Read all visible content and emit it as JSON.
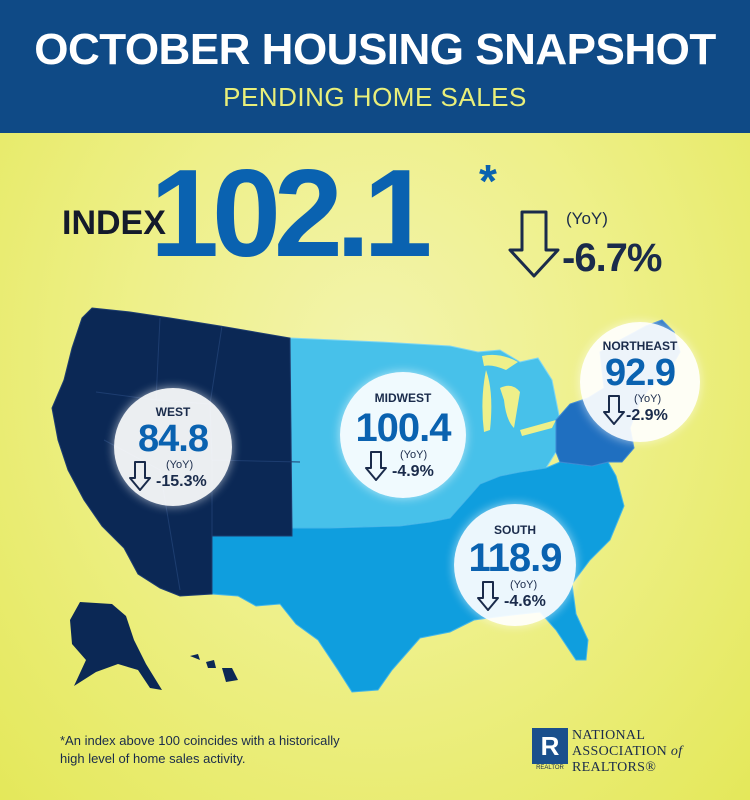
{
  "header": {
    "title": "OCTOBER HOUSING SNAPSHOT",
    "subtitle": "PENDING HOME SALES"
  },
  "national": {
    "label": "INDEX",
    "value": "102.1",
    "asterisk": "*",
    "yoy_label": "(YoY)",
    "change": "-6.7%"
  },
  "regions": {
    "west": {
      "name": "WEST",
      "value": "84.8",
      "yoy_label": "(YoY)",
      "change": "-15.3%"
    },
    "midwest": {
      "name": "MIDWEST",
      "value": "100.4",
      "yoy_label": "(YoY)",
      "change": "-4.9%"
    },
    "northeast": {
      "name": "NORTHEAST",
      "value": "92.9",
      "yoy_label": "(YoY)",
      "change": "-2.9%"
    },
    "south": {
      "name": "SOUTH",
      "value": "118.9",
      "yoy_label": "(YoY)",
      "change": "-4.6%"
    }
  },
  "footnote": "*An index above 100 coincides with a historically high level of home sales activity.",
  "org": {
    "logo_letter": "R",
    "logo_caption": "REALTOR",
    "name_line1": "NATIONAL",
    "name_line2": "ASSOCIATION",
    "name_of": "of",
    "name_line3": "REALTORS®"
  },
  "colors": {
    "header_bg": "#0f4a86",
    "west": "#0b2855",
    "midwest": "#47c1ea",
    "south": "#0f9ede",
    "northeast": "#1f6fc0",
    "value_blue": "#0a62b0"
  }
}
